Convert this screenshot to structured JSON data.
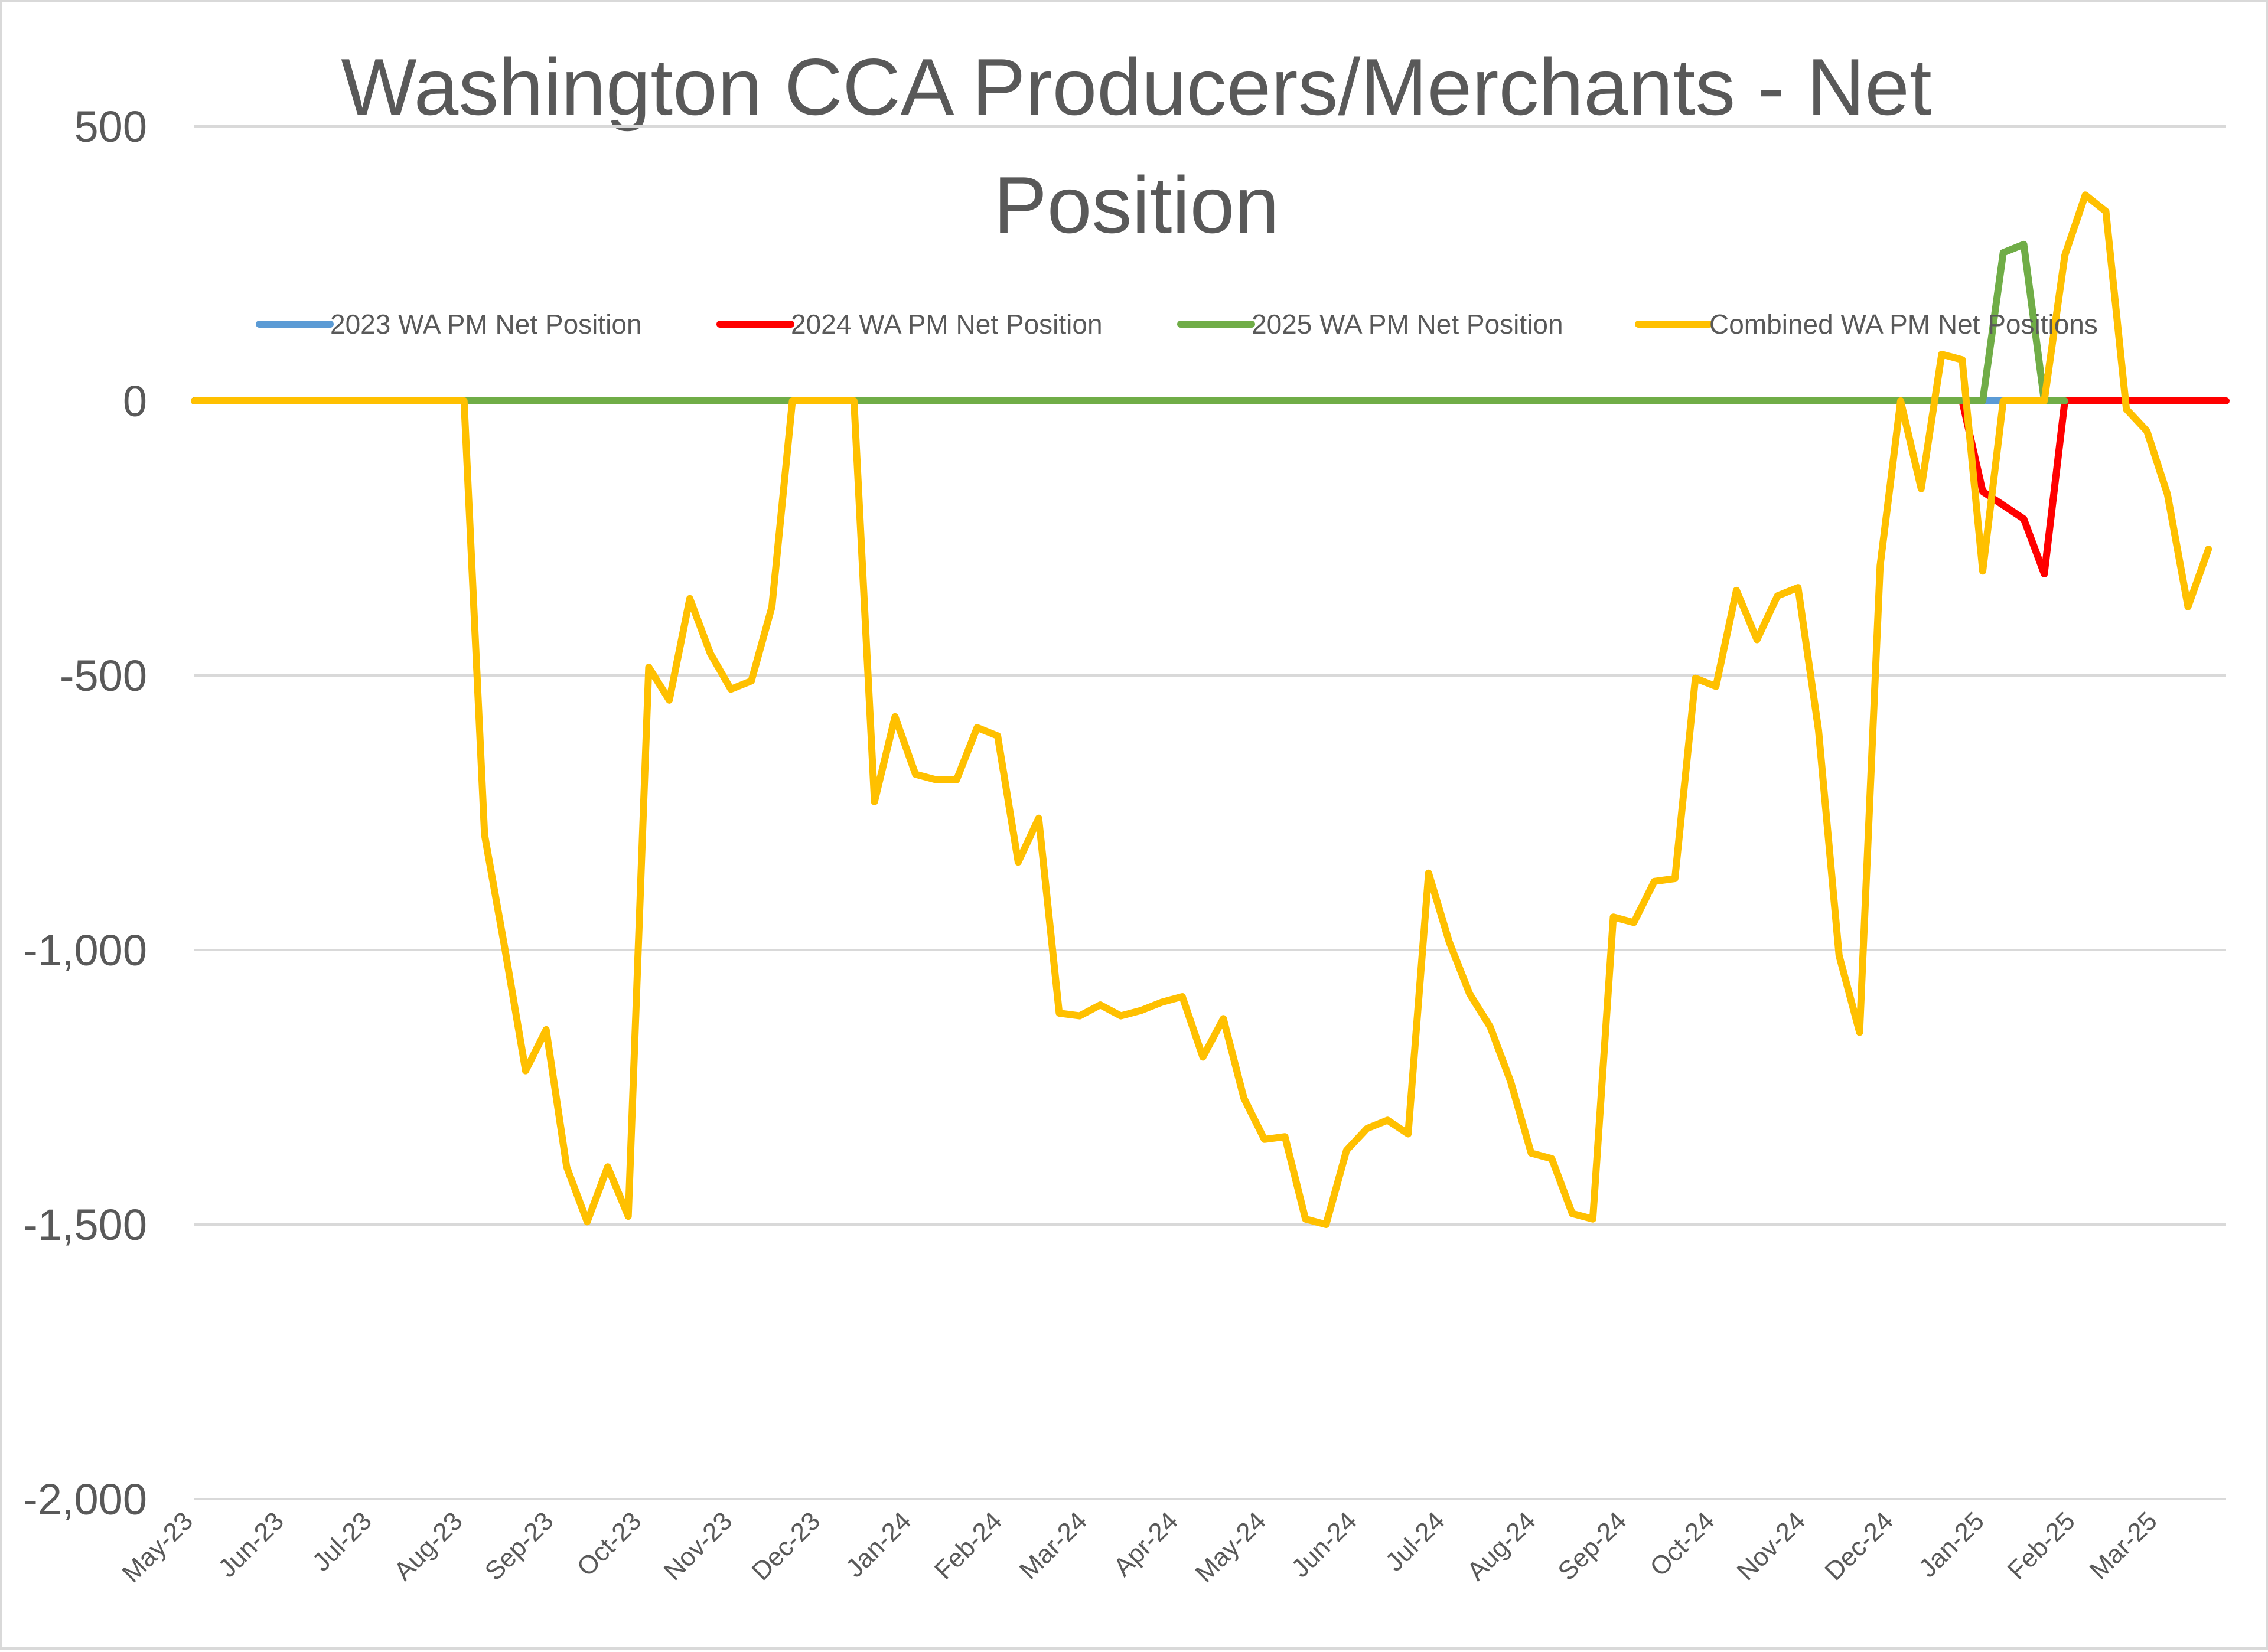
{
  "chart_data": {
    "type": "line",
    "title": "Washington CCA Producers/Merchants - Net Position",
    "title_lines": [
      "Washington CCA Producers/Merchants - Net",
      "Position"
    ],
    "xlabel": "",
    "ylabel": "",
    "ylim": [
      -2000,
      500
    ],
    "yticks": [
      500,
      0,
      -500,
      -1000,
      -1500,
      -2000
    ],
    "ytick_labels": [
      "500",
      "0",
      "-500",
      "-1,000",
      "-1,500",
      "-2,000"
    ],
    "grid": true,
    "legend_position": "top",
    "x_tick_labels": [
      "May-23",
      "Jun-23",
      "Jul-23",
      "Aug-23",
      "Sep-23",
      "Oct-23",
      "Nov-23",
      "Dec-23",
      "Jan-24",
      "Feb-24",
      "Mar-24",
      "Apr-24",
      "May-24",
      "Jun-24",
      "Jul-24",
      "Aug-24",
      "Sep-24",
      "Oct-24",
      "Nov-24",
      "Dec-24",
      "Jan-25",
      "Feb-25",
      "Mar-25"
    ],
    "x_tick_dates": [
      "2023-05-01",
      "2023-06-01",
      "2023-07-01",
      "2023-08-01",
      "2023-09-01",
      "2023-10-01",
      "2023-11-01",
      "2023-12-01",
      "2024-01-01",
      "2024-02-01",
      "2024-03-01",
      "2024-04-01",
      "2024-05-01",
      "2024-06-01",
      "2024-07-01",
      "2024-08-01",
      "2024-09-01",
      "2024-10-01",
      "2024-11-01",
      "2024-12-01",
      "2025-01-01",
      "2025-02-01",
      "2025-03-01"
    ],
    "x_range": [
      "2023-05-01",
      "2025-03-24"
    ],
    "series": [
      {
        "name": "2023 WA PM Net Position",
        "color": "#5b9bd5",
        "points": [
          [
            "2023-05-01",
            0
          ],
          [
            "2025-01-13",
            0
          ]
        ]
      },
      {
        "name": "2024 WA PM Net Position",
        "color": "#ff0000",
        "points": [
          [
            "2023-05-01",
            0
          ],
          [
            "2024-12-24",
            0
          ],
          [
            "2024-12-31",
            -165
          ],
          [
            "2025-01-14",
            -215
          ],
          [
            "2025-01-21",
            -315
          ],
          [
            "2025-01-28",
            0
          ],
          [
            "2025-03-24",
            0
          ]
        ]
      },
      {
        "name": "2025 WA PM Net Position",
        "color": "#70ad47",
        "points": [
          [
            "2023-05-01",
            0
          ],
          [
            "2024-12-31",
            0
          ],
          [
            "2025-01-07",
            270
          ],
          [
            "2025-01-14",
            285
          ],
          [
            "2025-01-21",
            0
          ],
          [
            "2025-01-28",
            0
          ]
        ]
      },
      {
        "name": "Combined WA PM Net Positions",
        "color": "#ffc000",
        "points": [
          [
            "2023-05-01",
            0
          ],
          [
            "2023-08-01",
            0
          ],
          [
            "2023-08-08",
            -790
          ],
          [
            "2023-08-15",
            -1000
          ],
          [
            "2023-08-22",
            -1220
          ],
          [
            "2023-08-29",
            -1145
          ],
          [
            "2023-09-05",
            -1395
          ],
          [
            "2023-09-12",
            -1495
          ],
          [
            "2023-09-19",
            -1395
          ],
          [
            "2023-09-26",
            -1485
          ],
          [
            "2023-10-03",
            -485
          ],
          [
            "2023-10-10",
            -545
          ],
          [
            "2023-10-17",
            -360
          ],
          [
            "2023-10-24",
            -460
          ],
          [
            "2023-10-31",
            -525
          ],
          [
            "2023-11-07",
            -510
          ],
          [
            "2023-11-14",
            -375
          ],
          [
            "2023-11-21",
            0
          ],
          [
            "2023-12-12",
            0
          ],
          [
            "2023-12-19",
            -730
          ],
          [
            "2023-12-26",
            -575
          ],
          [
            "2024-01-02",
            -680
          ],
          [
            "2024-01-09",
            -690
          ],
          [
            "2024-01-16",
            -690
          ],
          [
            "2024-01-23",
            -595
          ],
          [
            "2024-01-30",
            -610
          ],
          [
            "2024-02-06",
            -840
          ],
          [
            "2024-02-13",
            -760
          ],
          [
            "2024-02-20",
            -1115
          ],
          [
            "2024-02-27",
            -1120
          ],
          [
            "2024-03-05",
            -1100
          ],
          [
            "2024-03-12",
            -1120
          ],
          [
            "2024-03-19",
            -1110
          ],
          [
            "2024-03-26",
            -1095
          ],
          [
            "2024-04-02",
            -1085
          ],
          [
            "2024-04-09",
            -1195
          ],
          [
            "2024-04-16",
            -1125
          ],
          [
            "2024-04-23",
            -1270
          ],
          [
            "2024-04-30",
            -1345
          ],
          [
            "2024-05-07",
            -1340
          ],
          [
            "2024-05-14",
            -1490
          ],
          [
            "2024-05-21",
            -1500
          ],
          [
            "2024-05-28",
            -1365
          ],
          [
            "2024-06-04",
            -1325
          ],
          [
            "2024-06-11",
            -1310
          ],
          [
            "2024-06-18",
            -1335
          ],
          [
            "2024-06-25",
            -860
          ],
          [
            "2024-07-02",
            -985
          ],
          [
            "2024-07-09",
            -1080
          ],
          [
            "2024-07-16",
            -1140
          ],
          [
            "2024-07-23",
            -1240
          ],
          [
            "2024-07-30",
            -1370
          ],
          [
            "2024-08-06",
            -1380
          ],
          [
            "2024-08-13",
            -1480
          ],
          [
            "2024-08-20",
            -1490
          ],
          [
            "2024-08-27",
            -940
          ],
          [
            "2024-09-03",
            -950
          ],
          [
            "2024-09-10",
            -875
          ],
          [
            "2024-09-17",
            -870
          ],
          [
            "2024-09-24",
            -505
          ],
          [
            "2024-10-01",
            -520
          ],
          [
            "2024-10-08",
            -345
          ],
          [
            "2024-10-15",
            -435
          ],
          [
            "2024-10-22",
            -355
          ],
          [
            "2024-10-29",
            -340
          ],
          [
            "2024-11-05",
            -600
          ],
          [
            "2024-11-12",
            -1010
          ],
          [
            "2024-11-19",
            -1150
          ],
          [
            "2024-11-26",
            -300
          ],
          [
            "2024-12-03",
            0
          ],
          [
            "2024-12-10",
            -160
          ],
          [
            "2024-12-17",
            85
          ],
          [
            "2024-12-24",
            75
          ],
          [
            "2024-12-31",
            -310
          ],
          [
            "2025-01-07",
            0
          ],
          [
            "2025-01-14",
            0
          ],
          [
            "2025-01-21",
            0
          ],
          [
            "2025-01-28",
            265
          ],
          [
            "2025-02-04",
            375
          ],
          [
            "2025-02-11",
            345
          ],
          [
            "2025-02-18",
            -15
          ],
          [
            "2025-02-25",
            -55
          ],
          [
            "2025-03-04",
            -170
          ],
          [
            "2025-03-11",
            -375
          ],
          [
            "2025-03-18",
            -270
          ]
        ]
      }
    ]
  }
}
